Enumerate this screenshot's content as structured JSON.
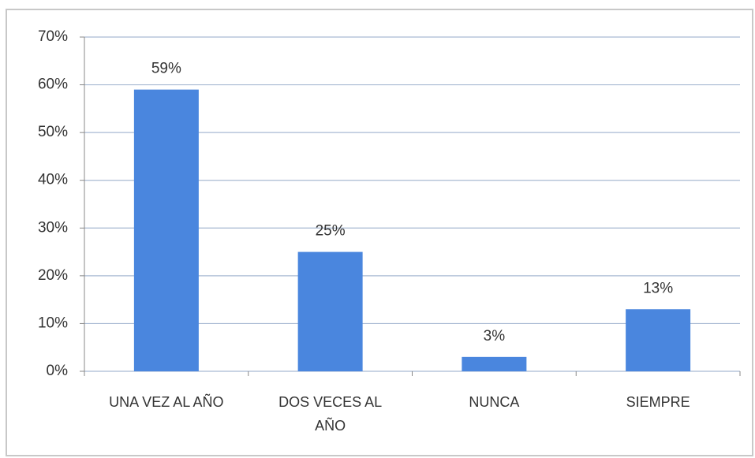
{
  "chart_data": {
    "type": "bar",
    "categories": [
      "UNA VEZ AL AÑO",
      "DOS VECES AL AÑO",
      "NUNCA",
      "SIEMPRE"
    ],
    "values": [
      59,
      25,
      3,
      13
    ],
    "value_labels": [
      "59%",
      "25%",
      "3%",
      "13%"
    ],
    "color": "#4a86de",
    "ylim": [
      0,
      70
    ],
    "yticks": [
      {
        "value": 0,
        "label": "0%"
      },
      {
        "value": 10,
        "label": "10%"
      },
      {
        "value": 20,
        "label": "20%"
      },
      {
        "value": 30,
        "label": "30%"
      },
      {
        "value": 40,
        "label": "40%"
      },
      {
        "value": 50,
        "label": "50%"
      },
      {
        "value": 60,
        "label": "60%"
      },
      {
        "value": 70,
        "label": "70%"
      }
    ],
    "grid": true
  }
}
